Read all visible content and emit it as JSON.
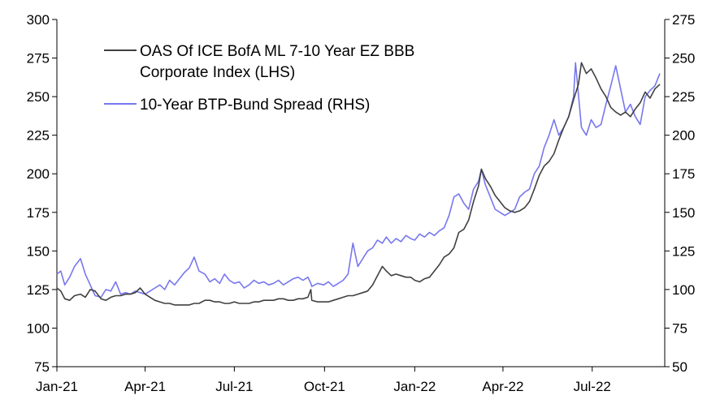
{
  "chart_data": {
    "type": "line",
    "title": "",
    "xlabel": "",
    "ylabel": "",
    "y2label": "",
    "xlim": [
      "2021-01-01",
      "2022-09-13"
    ],
    "ylim": [
      75,
      300
    ],
    "y2lim": [
      50,
      275
    ],
    "y_ticks": [
      75,
      100,
      125,
      150,
      175,
      200,
      225,
      250,
      275,
      300
    ],
    "y2_ticks": [
      50,
      75,
      100,
      125,
      150,
      175,
      200,
      225,
      250,
      275
    ],
    "x_ticks": [
      {
        "date": "2021-01-01",
        "label": "Jan-21"
      },
      {
        "date": "2021-04-01",
        "label": "Apr-21"
      },
      {
        "date": "2021-07-01",
        "label": "Jul-21"
      },
      {
        "date": "2021-10-01",
        "label": "Oct-21"
      },
      {
        "date": "2022-01-01",
        "label": "Jan-22"
      },
      {
        "date": "2022-04-01",
        "label": "Apr-22"
      },
      {
        "date": "2022-07-01",
        "label": "Jul-22"
      }
    ],
    "grid": false,
    "legend_position": "top-left",
    "series": [
      {
        "name": "OAS Of ICE BofA ML 7-10 Year EZ BBB Corporate Index (LHS)",
        "legend_lines": [
          "OAS Of ICE BofA ML 7-10 Year EZ BBB",
          "Corporate Index (LHS)"
        ],
        "axis": "left",
        "color": "#404040",
        "points": [
          [
            "2021-01-01",
            126
          ],
          [
            "2021-01-05",
            124
          ],
          [
            "2021-01-09",
            119
          ],
          [
            "2021-01-14",
            118
          ],
          [
            "2021-01-19",
            121
          ],
          [
            "2021-01-25",
            122
          ],
          [
            "2021-01-30",
            120
          ],
          [
            "2021-02-04",
            125
          ],
          [
            "2021-02-09",
            124
          ],
          [
            "2021-02-15",
            119
          ],
          [
            "2021-02-20",
            118
          ],
          [
            "2021-02-25",
            120
          ],
          [
            "2021-03-02",
            121
          ],
          [
            "2021-03-07",
            121
          ],
          [
            "2021-03-12",
            122
          ],
          [
            "2021-03-17",
            122
          ],
          [
            "2021-03-22",
            123
          ],
          [
            "2021-03-27",
            126
          ],
          [
            "2021-04-01",
            122
          ],
          [
            "2021-04-06",
            120
          ],
          [
            "2021-04-11",
            118
          ],
          [
            "2021-04-16",
            117
          ],
          [
            "2021-04-21",
            116
          ],
          [
            "2021-04-26",
            116
          ],
          [
            "2021-05-01",
            115
          ],
          [
            "2021-05-06",
            115
          ],
          [
            "2021-05-11",
            115
          ],
          [
            "2021-05-16",
            115
          ],
          [
            "2021-05-21",
            116
          ],
          [
            "2021-05-26",
            116
          ],
          [
            "2021-06-01",
            118
          ],
          [
            "2021-06-06",
            118
          ],
          [
            "2021-06-11",
            117
          ],
          [
            "2021-06-16",
            117
          ],
          [
            "2021-06-21",
            116
          ],
          [
            "2021-06-26",
            116
          ],
          [
            "2021-07-01",
            117
          ],
          [
            "2021-07-06",
            116
          ],
          [
            "2021-07-11",
            116
          ],
          [
            "2021-07-16",
            116
          ],
          [
            "2021-07-21",
            117
          ],
          [
            "2021-07-26",
            117
          ],
          [
            "2021-07-31",
            118
          ],
          [
            "2021-08-05",
            118
          ],
          [
            "2021-08-10",
            118
          ],
          [
            "2021-08-15",
            119
          ],
          [
            "2021-08-20",
            119
          ],
          [
            "2021-08-25",
            118
          ],
          [
            "2021-08-30",
            118
          ],
          [
            "2021-09-04",
            119
          ],
          [
            "2021-09-09",
            119
          ],
          [
            "2021-09-14",
            120
          ],
          [
            "2021-09-17",
            125
          ],
          [
            "2021-09-18",
            118
          ],
          [
            "2021-09-24",
            117
          ],
          [
            "2021-09-30",
            117
          ],
          [
            "2021-10-05",
            117
          ],
          [
            "2021-10-10",
            118
          ],
          [
            "2021-10-15",
            119
          ],
          [
            "2021-10-20",
            120
          ],
          [
            "2021-10-25",
            121
          ],
          [
            "2021-10-30",
            121
          ],
          [
            "2021-11-04",
            122
          ],
          [
            "2021-11-09",
            123
          ],
          [
            "2021-11-14",
            124
          ],
          [
            "2021-11-19",
            128
          ],
          [
            "2021-11-24",
            134
          ],
          [
            "2021-11-29",
            140
          ],
          [
            "2021-12-03",
            137
          ],
          [
            "2021-12-08",
            134
          ],
          [
            "2021-12-13",
            135
          ],
          [
            "2021-12-18",
            134
          ],
          [
            "2021-12-23",
            133
          ],
          [
            "2021-12-28",
            133
          ],
          [
            "2022-01-01",
            131
          ],
          [
            "2022-01-06",
            130
          ],
          [
            "2022-01-11",
            132
          ],
          [
            "2022-01-16",
            133
          ],
          [
            "2022-01-21",
            137
          ],
          [
            "2022-01-26",
            141
          ],
          [
            "2022-01-31",
            146
          ],
          [
            "2022-02-05",
            148
          ],
          [
            "2022-02-10",
            152
          ],
          [
            "2022-02-15",
            162
          ],
          [
            "2022-02-20",
            164
          ],
          [
            "2022-02-25",
            170
          ],
          [
            "2022-03-02",
            182
          ],
          [
            "2022-03-07",
            192
          ],
          [
            "2022-03-10",
            203
          ],
          [
            "2022-03-14",
            197
          ],
          [
            "2022-03-19",
            192
          ],
          [
            "2022-03-24",
            186
          ],
          [
            "2022-03-29",
            182
          ],
          [
            "2022-04-03",
            178
          ],
          [
            "2022-04-08",
            176
          ],
          [
            "2022-04-13",
            175
          ],
          [
            "2022-04-18",
            176
          ],
          [
            "2022-04-23",
            178
          ],
          [
            "2022-04-28",
            182
          ],
          [
            "2022-05-03",
            190
          ],
          [
            "2022-05-08",
            199
          ],
          [
            "2022-05-13",
            205
          ],
          [
            "2022-05-18",
            208
          ],
          [
            "2022-05-23",
            213
          ],
          [
            "2022-05-28",
            222
          ],
          [
            "2022-06-02",
            230
          ],
          [
            "2022-06-07",
            237
          ],
          [
            "2022-06-12",
            248
          ],
          [
            "2022-06-17",
            258
          ],
          [
            "2022-06-20",
            272
          ],
          [
            "2022-06-25",
            265
          ],
          [
            "2022-06-30",
            268
          ],
          [
            "2022-07-05",
            262
          ],
          [
            "2022-07-10",
            255
          ],
          [
            "2022-07-15",
            250
          ],
          [
            "2022-07-20",
            243
          ],
          [
            "2022-07-25",
            240
          ],
          [
            "2022-07-30",
            238
          ],
          [
            "2022-08-04",
            240
          ],
          [
            "2022-08-09",
            237
          ],
          [
            "2022-08-14",
            242
          ],
          [
            "2022-08-19",
            246
          ],
          [
            "2022-08-24",
            253
          ],
          [
            "2022-08-29",
            249
          ],
          [
            "2022-09-03",
            255
          ],
          [
            "2022-09-08",
            258
          ]
        ]
      },
      {
        "name": "10-Year BTP-Bund Spread (RHS)",
        "legend_lines": [
          "10-Year BTP-Bund Spread (RHS)"
        ],
        "axis": "right",
        "color": "#7777ee",
        "points": [
          [
            "2021-01-01",
            110
          ],
          [
            "2021-01-05",
            112
          ],
          [
            "2021-01-09",
            103
          ],
          [
            "2021-01-14",
            108
          ],
          [
            "2021-01-19",
            115
          ],
          [
            "2021-01-25",
            120
          ],
          [
            "2021-01-30",
            110
          ],
          [
            "2021-02-04",
            103
          ],
          [
            "2021-02-09",
            96
          ],
          [
            "2021-02-15",
            95
          ],
          [
            "2021-02-20",
            100
          ],
          [
            "2021-02-25",
            99
          ],
          [
            "2021-03-02",
            105
          ],
          [
            "2021-03-07",
            97
          ],
          [
            "2021-03-12",
            98
          ],
          [
            "2021-03-17",
            97
          ],
          [
            "2021-03-22",
            99
          ],
          [
            "2021-03-27",
            98
          ],
          [
            "2021-04-01",
            97
          ],
          [
            "2021-04-06",
            99
          ],
          [
            "2021-04-11",
            101
          ],
          [
            "2021-04-16",
            103
          ],
          [
            "2021-04-21",
            100
          ],
          [
            "2021-04-26",
            106
          ],
          [
            "2021-05-01",
            103
          ],
          [
            "2021-05-06",
            107
          ],
          [
            "2021-05-11",
            111
          ],
          [
            "2021-05-16",
            114
          ],
          [
            "2021-05-21",
            121
          ],
          [
            "2021-05-26",
            112
          ],
          [
            "2021-06-01",
            110
          ],
          [
            "2021-06-06",
            105
          ],
          [
            "2021-06-11",
            107
          ],
          [
            "2021-06-16",
            104
          ],
          [
            "2021-06-21",
            110
          ],
          [
            "2021-06-26",
            106
          ],
          [
            "2021-07-01",
            104
          ],
          [
            "2021-07-06",
            105
          ],
          [
            "2021-07-11",
            101
          ],
          [
            "2021-07-16",
            103
          ],
          [
            "2021-07-21",
            106
          ],
          [
            "2021-07-26",
            104
          ],
          [
            "2021-07-31",
            105
          ],
          [
            "2021-08-05",
            103
          ],
          [
            "2021-08-10",
            104
          ],
          [
            "2021-08-15",
            106
          ],
          [
            "2021-08-20",
            103
          ],
          [
            "2021-08-25",
            105
          ],
          [
            "2021-08-30",
            107
          ],
          [
            "2021-09-04",
            108
          ],
          [
            "2021-09-09",
            106
          ],
          [
            "2021-09-14",
            108
          ],
          [
            "2021-09-17",
            104
          ],
          [
            "2021-09-18",
            102
          ],
          [
            "2021-09-24",
            104
          ],
          [
            "2021-09-30",
            103
          ],
          [
            "2021-10-05",
            105
          ],
          [
            "2021-10-10",
            102
          ],
          [
            "2021-10-15",
            104
          ],
          [
            "2021-10-20",
            106
          ],
          [
            "2021-10-25",
            110
          ],
          [
            "2021-10-30",
            130
          ],
          [
            "2021-11-04",
            115
          ],
          [
            "2021-11-09",
            120
          ],
          [
            "2021-11-14",
            125
          ],
          [
            "2021-11-19",
            127
          ],
          [
            "2021-11-24",
            132
          ],
          [
            "2021-11-29",
            130
          ],
          [
            "2021-12-03",
            134
          ],
          [
            "2021-12-08",
            130
          ],
          [
            "2021-12-13",
            133
          ],
          [
            "2021-12-18",
            131
          ],
          [
            "2021-12-23",
            135
          ],
          [
            "2021-12-28",
            133
          ],
          [
            "2022-01-01",
            132
          ],
          [
            "2022-01-06",
            136
          ],
          [
            "2022-01-11",
            134
          ],
          [
            "2022-01-16",
            137
          ],
          [
            "2022-01-21",
            135
          ],
          [
            "2022-01-26",
            138
          ],
          [
            "2022-01-31",
            140
          ],
          [
            "2022-02-05",
            148
          ],
          [
            "2022-02-10",
            160
          ],
          [
            "2022-02-15",
            162
          ],
          [
            "2022-02-20",
            156
          ],
          [
            "2022-02-25",
            152
          ],
          [
            "2022-03-02",
            165
          ],
          [
            "2022-03-07",
            170
          ],
          [
            "2022-03-10",
            178
          ],
          [
            "2022-03-14",
            168
          ],
          [
            "2022-03-19",
            160
          ],
          [
            "2022-03-24",
            152
          ],
          [
            "2022-03-29",
            150
          ],
          [
            "2022-04-03",
            148
          ],
          [
            "2022-04-08",
            150
          ],
          [
            "2022-04-13",
            152
          ],
          [
            "2022-04-18",
            160
          ],
          [
            "2022-04-23",
            163
          ],
          [
            "2022-04-28",
            165
          ],
          [
            "2022-05-03",
            175
          ],
          [
            "2022-05-08",
            180
          ],
          [
            "2022-05-13",
            192
          ],
          [
            "2022-05-18",
            200
          ],
          [
            "2022-05-23",
            210
          ],
          [
            "2022-05-28",
            200
          ],
          [
            "2022-06-02",
            205
          ],
          [
            "2022-06-07",
            212
          ],
          [
            "2022-06-12",
            225
          ],
          [
            "2022-06-14",
            247
          ],
          [
            "2022-06-20",
            205
          ],
          [
            "2022-06-25",
            200
          ],
          [
            "2022-06-30",
            210
          ],
          [
            "2022-07-05",
            205
          ],
          [
            "2022-07-10",
            207
          ],
          [
            "2022-07-15",
            220
          ],
          [
            "2022-07-20",
            232
          ],
          [
            "2022-07-25",
            245
          ],
          [
            "2022-07-30",
            230
          ],
          [
            "2022-08-04",
            215
          ],
          [
            "2022-08-09",
            220
          ],
          [
            "2022-08-14",
            212
          ],
          [
            "2022-08-19",
            207
          ],
          [
            "2022-08-24",
            225
          ],
          [
            "2022-08-29",
            229
          ],
          [
            "2022-09-03",
            232
          ],
          [
            "2022-09-08",
            240
          ]
        ]
      }
    ]
  }
}
